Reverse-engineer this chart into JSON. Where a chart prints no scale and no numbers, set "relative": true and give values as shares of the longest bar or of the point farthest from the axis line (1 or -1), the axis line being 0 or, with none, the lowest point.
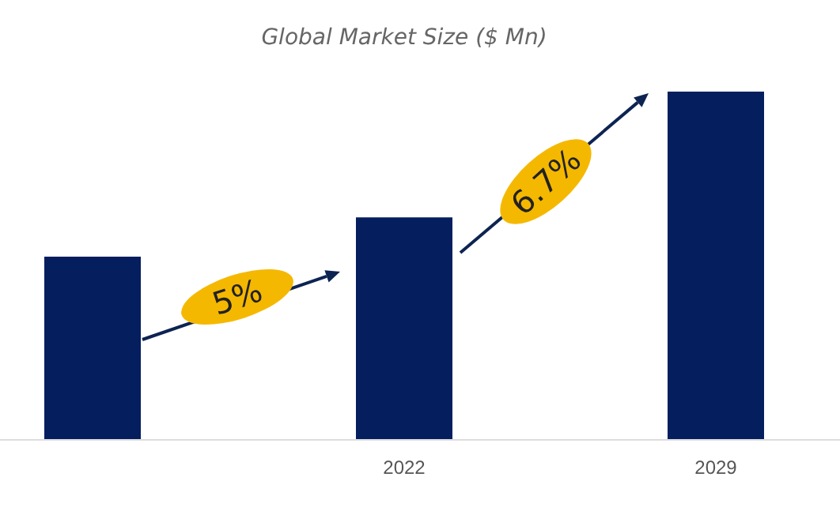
{
  "chart_data": {
    "type": "bar",
    "title": "Global Market Size ($ Mn)",
    "categories": [
      null,
      "2022",
      "2029"
    ],
    "relative": true,
    "color": "#041e5e",
    "values": [
      0.525,
      0.638,
      1
    ],
    "annotations": [
      "5%",
      "6.7%"
    ]
  }
}
